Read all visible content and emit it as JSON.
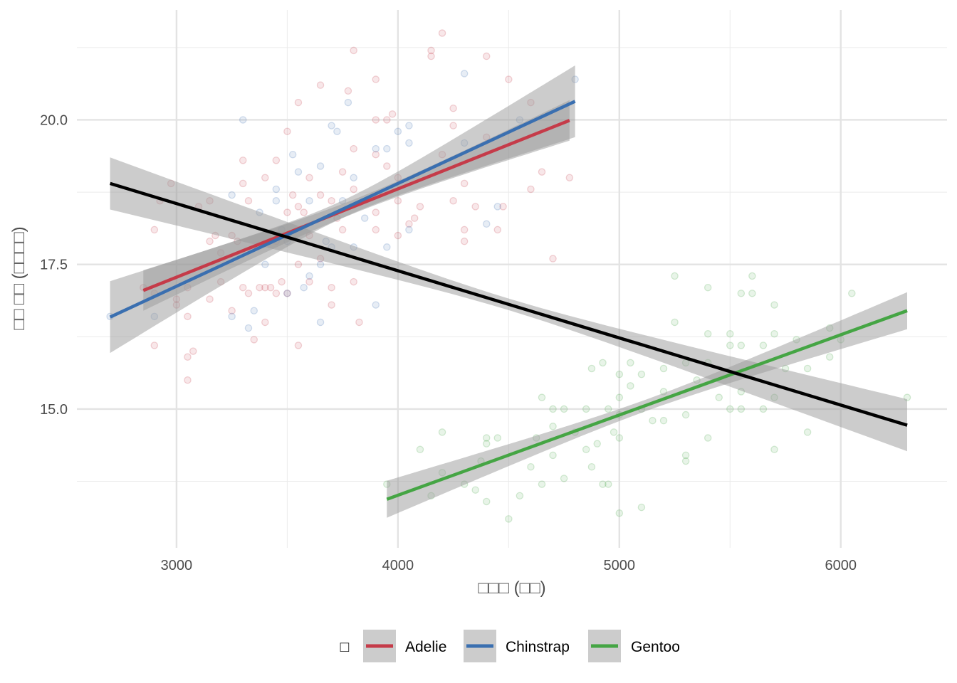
{
  "chart_data": {
    "type": "scatter",
    "title": "",
    "xlabel": "□□□ (□□)",
    "ylabel": "□□ □□ (□□□□)",
    "xlim": [
      2550,
      6480
    ],
    "ylim": [
      12.6,
      21.9
    ],
    "x_ticks": [
      3000,
      4000,
      5000,
      6000
    ],
    "x_tick_labels": [
      "3000",
      "4000",
      "5000",
      "6000"
    ],
    "y_ticks": [
      15.0,
      17.5,
      20.0
    ],
    "y_tick_labels": [
      "15.0",
      "17.5",
      "20.0"
    ],
    "grid": true,
    "legend": {
      "position": "bottom",
      "title": "□",
      "entries": [
        "Adelie",
        "Chinstrap",
        "Gentoo"
      ]
    },
    "colors": {
      "Adelie": "#c53b49",
      "Chinstrap": "#3a6fb0",
      "Gentoo": "#45a544",
      "overall": "#000000",
      "band": "#999999"
    },
    "series": [
      {
        "name": "Adelie",
        "points": [
          [
            2850,
            17.1
          ],
          [
            2900,
            18.1
          ],
          [
            2900,
            16.1
          ],
          [
            2900,
            17.0
          ],
          [
            2925,
            18.6
          ],
          [
            2975,
            18.9
          ],
          [
            3000,
            16.9
          ],
          [
            3000,
            16.8
          ],
          [
            3050,
            17.1
          ],
          [
            3050,
            16.6
          ],
          [
            3050,
            15.9
          ],
          [
            3050,
            15.5
          ],
          [
            3075,
            16.0
          ],
          [
            3100,
            18.5
          ],
          [
            3150,
            18.6
          ],
          [
            3150,
            17.9
          ],
          [
            3150,
            16.9
          ],
          [
            3175,
            18.0
          ],
          [
            3200,
            17.2
          ],
          [
            3200,
            17.7
          ],
          [
            3250,
            16.7
          ],
          [
            3250,
            18.0
          ],
          [
            3275,
            17.9
          ],
          [
            3300,
            18.9
          ],
          [
            3300,
            19.3
          ],
          [
            3300,
            17.1
          ],
          [
            3325,
            18.6
          ],
          [
            3325,
            17.0
          ],
          [
            3350,
            16.2
          ],
          [
            3375,
            17.1
          ],
          [
            3400,
            19.0
          ],
          [
            3400,
            17.1
          ],
          [
            3400,
            16.5
          ],
          [
            3425,
            17.1
          ],
          [
            3450,
            19.3
          ],
          [
            3450,
            17.9
          ],
          [
            3450,
            17.0
          ],
          [
            3475,
            17.2
          ],
          [
            3500,
            19.8
          ],
          [
            3500,
            18.4
          ],
          [
            3500,
            17.0
          ],
          [
            3525,
            18.7
          ],
          [
            3550,
            20.3
          ],
          [
            3550,
            18.5
          ],
          [
            3550,
            17.5
          ],
          [
            3550,
            16.1
          ],
          [
            3575,
            18.4
          ],
          [
            3600,
            19.0
          ],
          [
            3600,
            18.0
          ],
          [
            3600,
            17.2
          ],
          [
            3650,
            20.6
          ],
          [
            3650,
            17.6
          ],
          [
            3650,
            18.7
          ],
          [
            3700,
            18.6
          ],
          [
            3700,
            17.1
          ],
          [
            3700,
            16.8
          ],
          [
            3725,
            18.3
          ],
          [
            3750,
            19.1
          ],
          [
            3750,
            18.1
          ],
          [
            3775,
            20.5
          ],
          [
            3800,
            21.2
          ],
          [
            3800,
            19.5
          ],
          [
            3800,
            18.8
          ],
          [
            3800,
            17.2
          ],
          [
            3825,
            16.5
          ],
          [
            3900,
            20.7
          ],
          [
            3900,
            20.0
          ],
          [
            3900,
            19.4
          ],
          [
            3900,
            18.4
          ],
          [
            3900,
            18.1
          ],
          [
            3950,
            20.0
          ],
          [
            3950,
            19.2
          ],
          [
            3975,
            20.1
          ],
          [
            4000,
            19.0
          ],
          [
            4000,
            18.6
          ],
          [
            4000,
            18.0
          ],
          [
            4050,
            18.2
          ],
          [
            4075,
            18.3
          ],
          [
            4100,
            18.5
          ],
          [
            4150,
            21.2
          ],
          [
            4150,
            21.1
          ],
          [
            4200,
            21.5
          ],
          [
            4200,
            19.4
          ],
          [
            4250,
            20.2
          ],
          [
            4250,
            19.9
          ],
          [
            4250,
            18.6
          ],
          [
            4300,
            18.9
          ],
          [
            4300,
            18.1
          ],
          [
            4300,
            17.9
          ],
          [
            4350,
            18.5
          ],
          [
            4400,
            21.1
          ],
          [
            4400,
            19.7
          ],
          [
            4450,
            18.1
          ],
          [
            4475,
            18.5
          ],
          [
            4500,
            20.7
          ],
          [
            4600,
            20.3
          ],
          [
            4600,
            18.8
          ],
          [
            4650,
            19.1
          ],
          [
            4700,
            17.6
          ],
          [
            4775,
            19.0
          ]
        ]
      },
      {
        "name": "Chinstrap",
        "points": [
          [
            2700,
            16.6
          ],
          [
            2900,
            16.6
          ],
          [
            3250,
            18.7
          ],
          [
            3250,
            16.6
          ],
          [
            3300,
            20.0
          ],
          [
            3325,
            16.4
          ],
          [
            3350,
            16.7
          ],
          [
            3375,
            18.4
          ],
          [
            3400,
            17.5
          ],
          [
            3450,
            18.8
          ],
          [
            3450,
            18.6
          ],
          [
            3475,
            18.1
          ],
          [
            3500,
            17.9
          ],
          [
            3500,
            17.0
          ],
          [
            3525,
            19.4
          ],
          [
            3550,
            19.1
          ],
          [
            3575,
            17.1
          ],
          [
            3600,
            18.6
          ],
          [
            3600,
            17.3
          ],
          [
            3650,
            19.2
          ],
          [
            3650,
            17.5
          ],
          [
            3650,
            16.5
          ],
          [
            3675,
            17.9
          ],
          [
            3700,
            19.9
          ],
          [
            3700,
            17.8
          ],
          [
            3725,
            19.8
          ],
          [
            3750,
            18.6
          ],
          [
            3775,
            20.3
          ],
          [
            3800,
            19.0
          ],
          [
            3800,
            17.8
          ],
          [
            3850,
            18.3
          ],
          [
            3900,
            19.5
          ],
          [
            3900,
            16.8
          ],
          [
            3950,
            19.5
          ],
          [
            3950,
            17.8
          ],
          [
            4000,
            19.8
          ],
          [
            4050,
            19.9
          ],
          [
            4050,
            19.6
          ],
          [
            4050,
            18.1
          ],
          [
            4300,
            20.8
          ],
          [
            4300,
            19.6
          ],
          [
            4400,
            18.2
          ],
          [
            4450,
            18.5
          ],
          [
            4550,
            20.0
          ],
          [
            4800,
            20.7
          ]
        ]
      },
      {
        "name": "Gentoo",
        "points": [
          [
            3950,
            13.7
          ],
          [
            4100,
            14.3
          ],
          [
            4150,
            13.5
          ],
          [
            4200,
            14.6
          ],
          [
            4200,
            13.9
          ],
          [
            4300,
            13.7
          ],
          [
            4350,
            13.6
          ],
          [
            4375,
            14.1
          ],
          [
            4400,
            14.5
          ],
          [
            4400,
            14.4
          ],
          [
            4400,
            13.4
          ],
          [
            4450,
            14.5
          ],
          [
            4500,
            13.1
          ],
          [
            4550,
            13.5
          ],
          [
            4600,
            14.0
          ],
          [
            4625,
            14.5
          ],
          [
            4650,
            15.2
          ],
          [
            4650,
            13.7
          ],
          [
            4700,
            15.0
          ],
          [
            4700,
            14.2
          ],
          [
            4700,
            14.7
          ],
          [
            4750,
            15.0
          ],
          [
            4750,
            13.8
          ],
          [
            4800,
            14.6
          ],
          [
            4850,
            15.0
          ],
          [
            4850,
            14.3
          ],
          [
            4875,
            15.7
          ],
          [
            4875,
            14.0
          ],
          [
            4900,
            14.4
          ],
          [
            4925,
            15.8
          ],
          [
            4925,
            13.7
          ],
          [
            4950,
            15.0
          ],
          [
            4950,
            13.7
          ],
          [
            4975,
            14.6
          ],
          [
            5000,
            15.6
          ],
          [
            5000,
            15.2
          ],
          [
            5000,
            14.9
          ],
          [
            5000,
            14.5
          ],
          [
            5000,
            13.2
          ],
          [
            5050,
            15.8
          ],
          [
            5050,
            15.4
          ],
          [
            5100,
            15.6
          ],
          [
            5100,
            15.0
          ],
          [
            5100,
            13.3
          ],
          [
            5150,
            14.8
          ],
          [
            5200,
            15.7
          ],
          [
            5200,
            15.3
          ],
          [
            5200,
            14.8
          ],
          [
            5250,
            17.3
          ],
          [
            5250,
            16.5
          ],
          [
            5300,
            15.8
          ],
          [
            5300,
            14.9
          ],
          [
            5300,
            14.2
          ],
          [
            5300,
            14.1
          ],
          [
            5350,
            15.5
          ],
          [
            5400,
            17.1
          ],
          [
            5400,
            16.3
          ],
          [
            5400,
            15.8
          ],
          [
            5400,
            14.5
          ],
          [
            5450,
            15.2
          ],
          [
            5500,
            16.3
          ],
          [
            5500,
            16.1
          ],
          [
            5500,
            15.0
          ],
          [
            5550,
            17.0
          ],
          [
            5550,
            16.1
          ],
          [
            5550,
            15.3
          ],
          [
            5550,
            15.0
          ],
          [
            5600,
            17.3
          ],
          [
            5600,
            17.0
          ],
          [
            5650,
            16.1
          ],
          [
            5650,
            15.0
          ],
          [
            5700,
            16.8
          ],
          [
            5700,
            16.3
          ],
          [
            5700,
            15.2
          ],
          [
            5700,
            14.3
          ],
          [
            5750,
            15.7
          ],
          [
            5800,
            16.2
          ],
          [
            5850,
            15.7
          ],
          [
            5850,
            14.6
          ],
          [
            5950,
            16.4
          ],
          [
            5950,
            15.9
          ],
          [
            6000,
            16.2
          ],
          [
            6050,
            17.0
          ],
          [
            6300,
            15.2
          ]
        ]
      }
    ],
    "fits": [
      {
        "name": "Adelie",
        "x": [
          2850,
          4775
        ],
        "y": [
          17.05,
          19.99
        ],
        "ci_half_width_ends": 0.35,
        "ci_half_width_mid": 0.12
      },
      {
        "name": "Chinstrap",
        "x": [
          2700,
          4800
        ],
        "y": [
          16.59,
          20.32
        ],
        "ci_half_width_ends": 0.62,
        "ci_half_width_mid": 0.15
      },
      {
        "name": "Gentoo",
        "x": [
          3950,
          6300
        ],
        "y": [
          13.44,
          16.7
        ],
        "ci_half_width_ends": 0.32,
        "ci_half_width_mid": 0.1
      },
      {
        "name": "overall",
        "x": [
          2700,
          6300
        ],
        "y": [
          18.9,
          14.72
        ],
        "ci_half_width_ends": 0.45,
        "ci_half_width_mid": 0.1
      }
    ]
  }
}
